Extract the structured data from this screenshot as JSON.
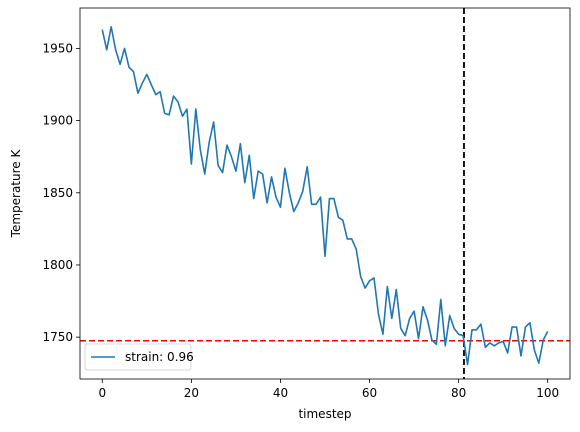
{
  "chart_data": {
    "type": "line",
    "title": "",
    "xlabel": "timestep",
    "ylabel": "Temperature K",
    "xlim": [
      -5,
      105
    ],
    "ylim": [
      1721,
      1978
    ],
    "xticks": [
      0,
      20,
      40,
      60,
      80,
      100
    ],
    "yticks": [
      1750,
      1800,
      1850,
      1900,
      1950
    ],
    "grid": false,
    "legend": {
      "placement": "lower-left"
    },
    "series": [
      {
        "name": "strain: 0.96",
        "color": "#1f77b4",
        "x": [
          0,
          1,
          2,
          3,
          4,
          5,
          6,
          7,
          8,
          9,
          10,
          11,
          12,
          13,
          14,
          15,
          16,
          17,
          18,
          19,
          20,
          21,
          22,
          23,
          24,
          25,
          26,
          27,
          28,
          29,
          30,
          31,
          32,
          33,
          34,
          35,
          36,
          37,
          38,
          39,
          40,
          41,
          42,
          43,
          44,
          45,
          46,
          47,
          48,
          49,
          50,
          51,
          52,
          53,
          54,
          55,
          56,
          57,
          58,
          59,
          60,
          61,
          62,
          63,
          64,
          65,
          66,
          67,
          68,
          69,
          70,
          71,
          72,
          73,
          74,
          75,
          76,
          77,
          78,
          79,
          80,
          81,
          82,
          83,
          84,
          85,
          86,
          87,
          88,
          89,
          90,
          91,
          92,
          93,
          94,
          95,
          96,
          97,
          98,
          99,
          100
        ],
        "y": [
          1963,
          1949,
          1965,
          1949,
          1939,
          1950,
          1937,
          1934,
          1919,
          1926,
          1932,
          1925,
          1918,
          1920,
          1905,
          1904,
          1917,
          1913,
          1903,
          1908,
          1870,
          1908,
          1880,
          1863,
          1885,
          1899,
          1869,
          1864,
          1883,
          1875,
          1865,
          1884,
          1857,
          1876,
          1846,
          1865,
          1863,
          1843,
          1861,
          1847,
          1840,
          1867,
          1850,
          1837,
          1843,
          1851,
          1868,
          1842,
          1842,
          1847,
          1806,
          1846,
          1846,
          1833,
          1831,
          1818,
          1818,
          1811,
          1792,
          1784,
          1789,
          1791,
          1766,
          1752,
          1785,
          1763,
          1783,
          1756,
          1751,
          1763,
          1768,
          1749,
          1771,
          1762,
          1748,
          1745,
          1776,
          1744,
          1765,
          1756,
          1752,
          1751,
          1731,
          1755,
          1755,
          1759,
          1743,
          1746,
          1744,
          1746,
          1747,
          1739,
          1757,
          1757,
          1737,
          1757,
          1760,
          1741,
          1732,
          1748,
          1754
        ]
      }
    ],
    "reference_lines": [
      {
        "orientation": "horizontal",
        "value": 1747.5,
        "color": "#ff0000",
        "style": "dashed"
      },
      {
        "orientation": "vertical",
        "value": 81.2,
        "color": "#000000",
        "style": "dashed"
      }
    ]
  }
}
